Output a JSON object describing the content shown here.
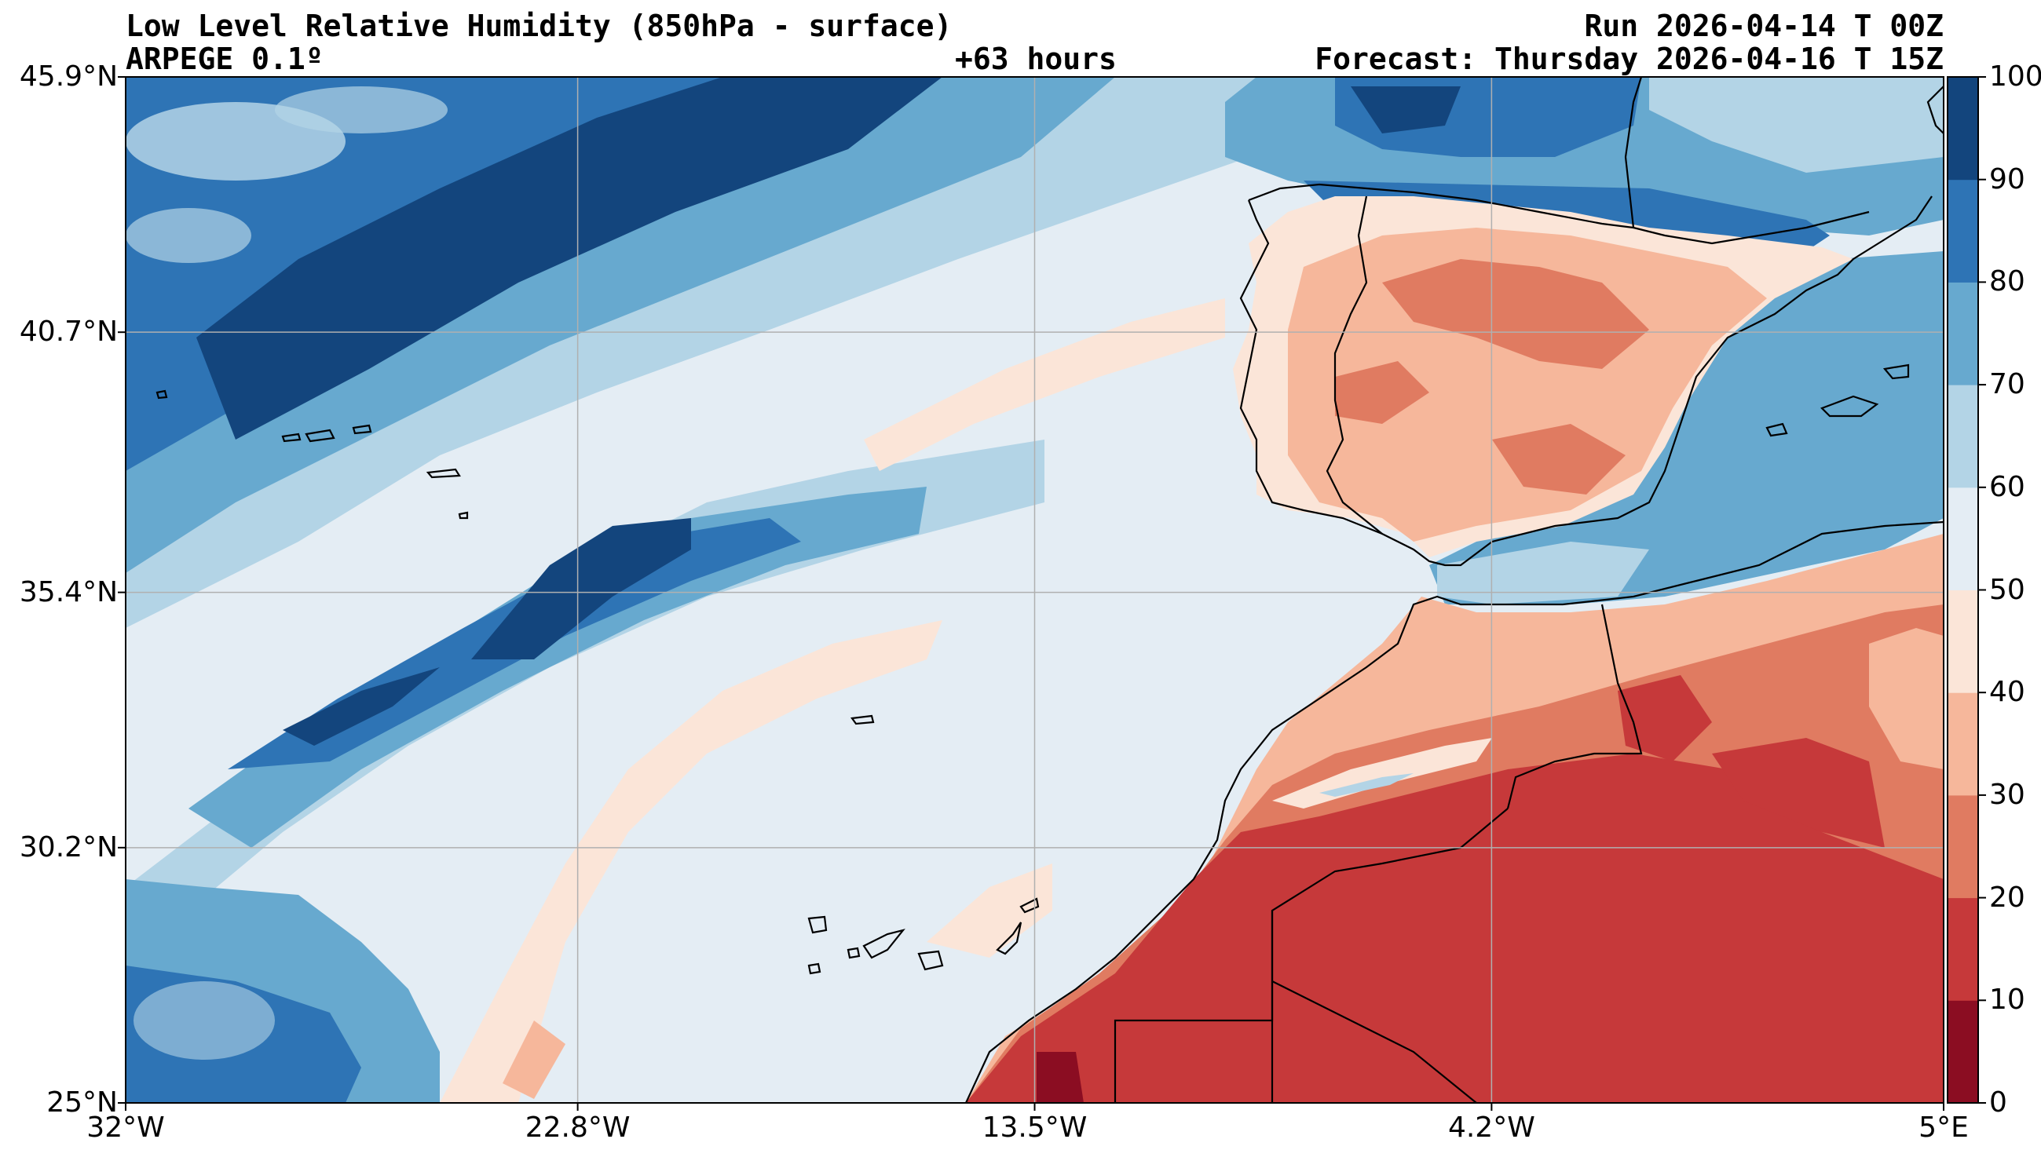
{
  "header": {
    "title": "Low Level Relative Humidity (850hPa - surface)",
    "model": "ARPEGE 0.1º",
    "lead_time": "+63 hours",
    "run": "Run 2026-04-14 T 00Z",
    "forecast": "Forecast: Thursday 2026-04-16 T 15Z"
  },
  "map": {
    "lon_range": [
      -32,
      5
    ],
    "lat_range": [
      25,
      45.9
    ],
    "lon_ticks": [
      {
        "value": -32,
        "label": "32°W"
      },
      {
        "value": -22.8,
        "label": "22.8°W"
      },
      {
        "value": -13.5,
        "label": "13.5°W"
      },
      {
        "value": -4.2,
        "label": "4.2°W"
      },
      {
        "value": 5,
        "label": "5°E"
      }
    ],
    "lat_ticks": [
      {
        "value": 45.9,
        "label": "45.9°N"
      },
      {
        "value": 40.7,
        "label": "40.7°N"
      },
      {
        "value": 35.4,
        "label": "35.4°N"
      },
      {
        "value": 30.2,
        "label": "30.2°N"
      },
      {
        "value": 25,
        "label": "25°N"
      }
    ],
    "grid": true,
    "colors": {
      "land_outline": "#000000",
      "grid": "#b0b0b0"
    }
  },
  "colorbar": {
    "orientation": "vertical",
    "placement": "right",
    "levels": [
      0,
      10,
      20,
      30,
      40,
      50,
      60,
      70,
      80,
      90,
      100
    ],
    "labels": [
      "0",
      "10",
      "20",
      "30",
      "40",
      "50",
      "60",
      "70",
      "80",
      "90",
      "100"
    ],
    "colors": [
      "#8b0d22",
      "#c6393a",
      "#e07b61",
      "#f6b79b",
      "#fbe5d8",
      "#e4edf4",
      "#b3d4e6",
      "#67a9cf",
      "#2e74b5",
      "#13457d"
    ]
  }
}
